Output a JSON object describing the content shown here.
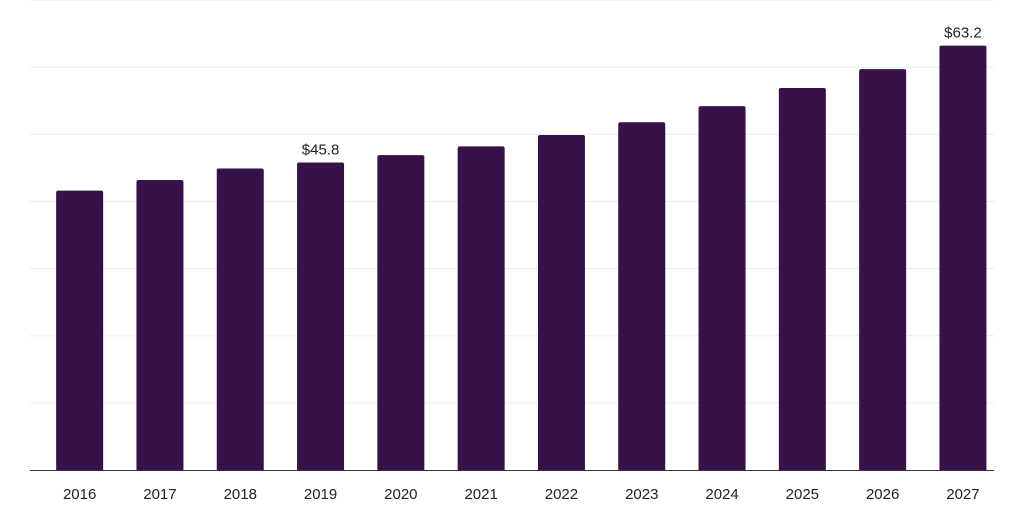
{
  "chart_data": {
    "type": "bar",
    "title": "",
    "xlabel": "",
    "ylabel": "",
    "categories": [
      "2016",
      "2017",
      "2018",
      "2019",
      "2020",
      "2021",
      "2022",
      "2023",
      "2024",
      "2025",
      "2026",
      "2027"
    ],
    "values": [
      41.6,
      43.2,
      44.9,
      45.8,
      46.9,
      48.2,
      49.9,
      51.8,
      54.2,
      56.9,
      59.7,
      63.2
    ],
    "value_labels": {
      "2019": "$45.8",
      "2027": "$63.2"
    },
    "ylim": [
      0,
      70
    ],
    "grid": true,
    "legend": "none",
    "colors": {
      "bar": "#371149",
      "grid": "#ececec",
      "axis": "#333333"
    }
  }
}
